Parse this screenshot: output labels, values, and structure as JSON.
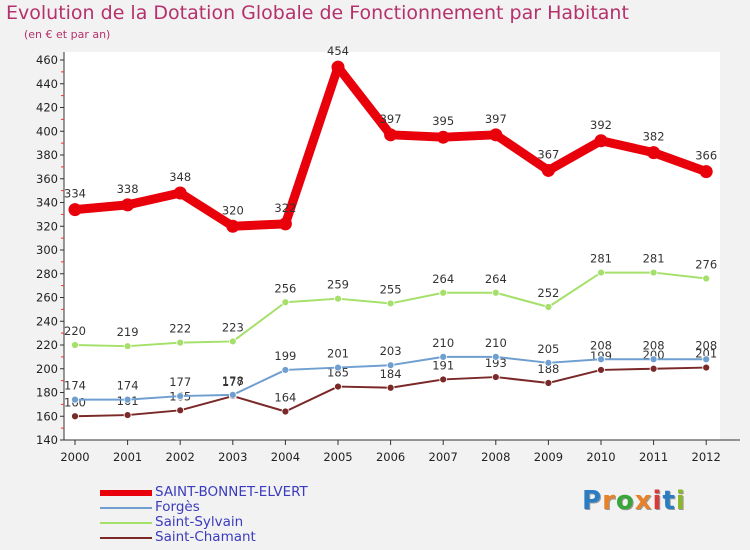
{
  "header": {
    "title": "Evolution de la Dotation Globale de Fonctionnement par Habitant",
    "subtitle": "(en € et par an)"
  },
  "logo": {
    "text": "Proxiti",
    "colors": [
      "#2a7dc2",
      "#e8822a",
      "#3aa63a",
      "#e8822a",
      "#d83a3a",
      "#2a7dc2",
      "#8ab82a"
    ]
  },
  "chart_data": {
    "type": "line",
    "title": "Evolution de la Dotation Globale de Fonctionnement par Habitant",
    "subtitle": "(en € et par an)",
    "xlabel": "",
    "ylabel": "",
    "categories": [
      "2000",
      "2001",
      "2002",
      "2003",
      "2004",
      "2005",
      "2006",
      "2007",
      "2008",
      "2009",
      "2010",
      "2011",
      "2012"
    ],
    "yticks": [
      140,
      160,
      180,
      200,
      220,
      240,
      260,
      280,
      300,
      320,
      340,
      360,
      380,
      400,
      420,
      440,
      460
    ],
    "ylim": [
      140,
      460
    ],
    "grid": false,
    "legend_position": "bottom-left",
    "series": [
      {
        "name": "SAINT-BONNET-ELVERT",
        "color": "#e8000b",
        "values": [
          334,
          338,
          348,
          320,
          322,
          454,
          397,
          395,
          397,
          367,
          392,
          382,
          366
        ]
      },
      {
        "name": "Forgès",
        "color": "#6f9fd0",
        "values": [
          174,
          174,
          177,
          178,
          199,
          201,
          203,
          210,
          210,
          205,
          208,
          208,
          208
        ]
      },
      {
        "name": "Saint-Sylvain",
        "color": "#a5e06a",
        "values": [
          220,
          219,
          222,
          223,
          256,
          259,
          255,
          264,
          264,
          252,
          281,
          281,
          276
        ]
      },
      {
        "name": "Saint-Chamant",
        "color": "#7a2828",
        "values": [
          160,
          161,
          165,
          177,
          164,
          185,
          184,
          191,
          193,
          188,
          199,
          200,
          201
        ]
      }
    ]
  }
}
